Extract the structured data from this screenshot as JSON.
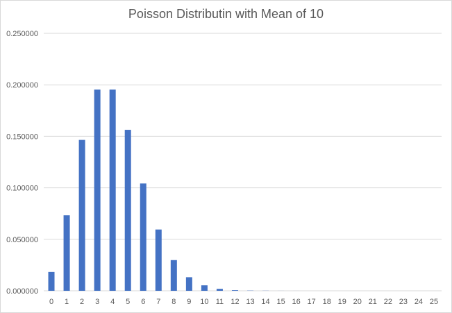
{
  "chart_data": {
    "type": "bar",
    "title": "Poisson Distributin with Mean of 10",
    "xlabel": "",
    "ylabel": "",
    "categories": [
      "0",
      "1",
      "2",
      "3",
      "4",
      "5",
      "6",
      "7",
      "8",
      "9",
      "10",
      "11",
      "12",
      "13",
      "14",
      "15",
      "16",
      "17",
      "18",
      "19",
      "20",
      "21",
      "22",
      "23",
      "24",
      "25"
    ],
    "values": [
      0.0183,
      0.0733,
      0.1465,
      0.1954,
      0.1954,
      0.1563,
      0.1042,
      0.0595,
      0.0298,
      0.0132,
      0.0053,
      0.0019,
      0.0006,
      0.0002,
      0.0001,
      3e-05,
      1e-05,
      2e-06,
      5e-07,
      1e-07,
      0,
      0,
      0,
      0,
      0,
      0
    ],
    "yticks": [
      "0.000000",
      "0.050000",
      "0.100000",
      "0.150000",
      "0.200000",
      "0.250000"
    ],
    "ylim": [
      0,
      0.25
    ],
    "grid": true,
    "legend": "none",
    "bar_color": "#4472c4",
    "grid_color": "#d9d9d9"
  }
}
